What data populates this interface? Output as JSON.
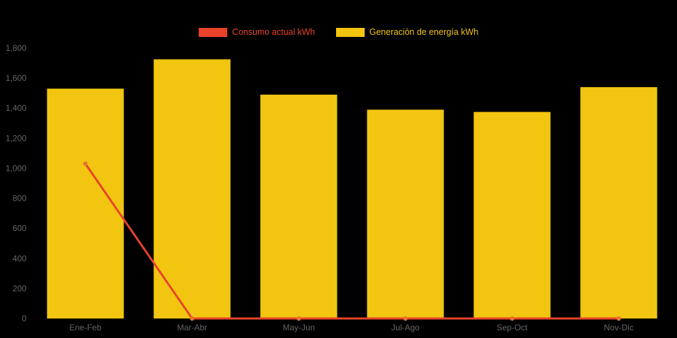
{
  "legend": {
    "items": [
      {
        "label": "Consumo actual kWh",
        "color": "#e8432a"
      },
      {
        "label": "Generación de energía kWh",
        "color": "#f2c511"
      }
    ]
  },
  "chart_data": {
    "type": "bar",
    "categories": [
      "Ene-Feb",
      "Mar-Abr",
      "May-Jun",
      "Jul-Ago",
      "Sep-Oct",
      "Nov-Dic"
    ],
    "series": [
      {
        "name": "Consumo actual kWh",
        "type": "line",
        "color": "#e8432a",
        "marker_color": "#e8742c",
        "values": [
          1030,
          0,
          0,
          0,
          0,
          0
        ]
      },
      {
        "name": "Generación de energía kWh",
        "type": "bar",
        "color": "#f2c511",
        "values": [
          1530,
          1725,
          1490,
          1390,
          1375,
          1540
        ]
      }
    ],
    "title": "",
    "xlabel": "",
    "ylabel": "",
    "ylim": [
      0,
      1800
    ],
    "ytick_step": 200,
    "ytick_labels": [
      "0",
      "200",
      "400",
      "600",
      "800",
      "1,000",
      "1,200",
      "1,400",
      "1,600",
      "1,800"
    ],
    "grid": false,
    "legend_position": "top",
    "axis_label_color": "#666666",
    "background": "#000000"
  }
}
